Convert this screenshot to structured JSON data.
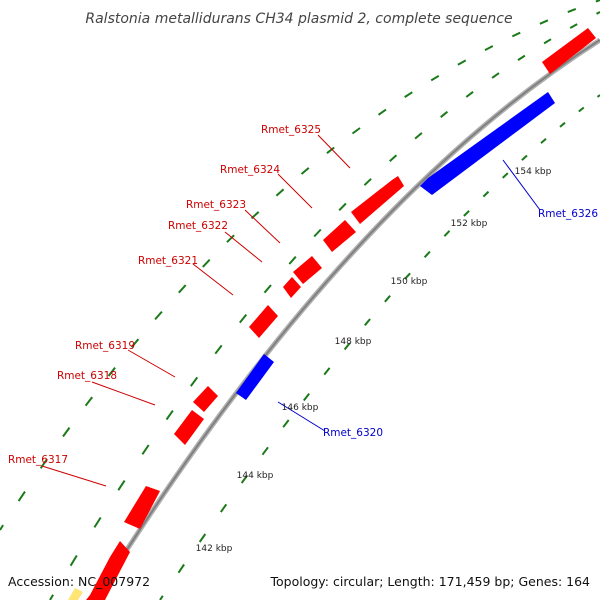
{
  "title": "Ralstonia metallidurans CH34 plasmid 2, complete sequence",
  "accession": "Accession: NC_007972",
  "summary": "Topology: circular; Length: 171,459 bp; Genes: 164",
  "colors": {
    "forward_gene": "#ff0000",
    "reverse_gene": "#0000ff",
    "backbone": "#888888",
    "dots": "#1a7a1a",
    "forward_label": "#cc0000",
    "reverse_label": "#0000cc"
  },
  "genes": [
    {
      "id": "Rmet_6317",
      "label": "Rmet_6317",
      "strand": "forward"
    },
    {
      "id": "Rmet_6318",
      "label": "Rmet_6318",
      "strand": "forward"
    },
    {
      "id": "Rmet_6319",
      "label": "Rmet_6319",
      "strand": "forward"
    },
    {
      "id": "Rmet_6320",
      "label": "Rmet_6320",
      "strand": "reverse"
    },
    {
      "id": "Rmet_6321",
      "label": "Rmet_6321",
      "strand": "forward"
    },
    {
      "id": "Rmet_6322",
      "label": "Rmet_6322",
      "strand": "forward"
    },
    {
      "id": "Rmet_6323",
      "label": "Rmet_6323",
      "strand": "forward"
    },
    {
      "id": "Rmet_6324",
      "label": "Rmet_6324",
      "strand": "forward"
    },
    {
      "id": "Rmet_6325",
      "label": "Rmet_6325",
      "strand": "forward"
    },
    {
      "id": "Rmet_6326",
      "label": "Rmet_6326",
      "strand": "reverse"
    }
  ],
  "ticks": [
    "142 kbp",
    "144 kbp",
    "146 kbp",
    "148 kbp",
    "150 kbp",
    "152 kbp",
    "154 kbp"
  ]
}
